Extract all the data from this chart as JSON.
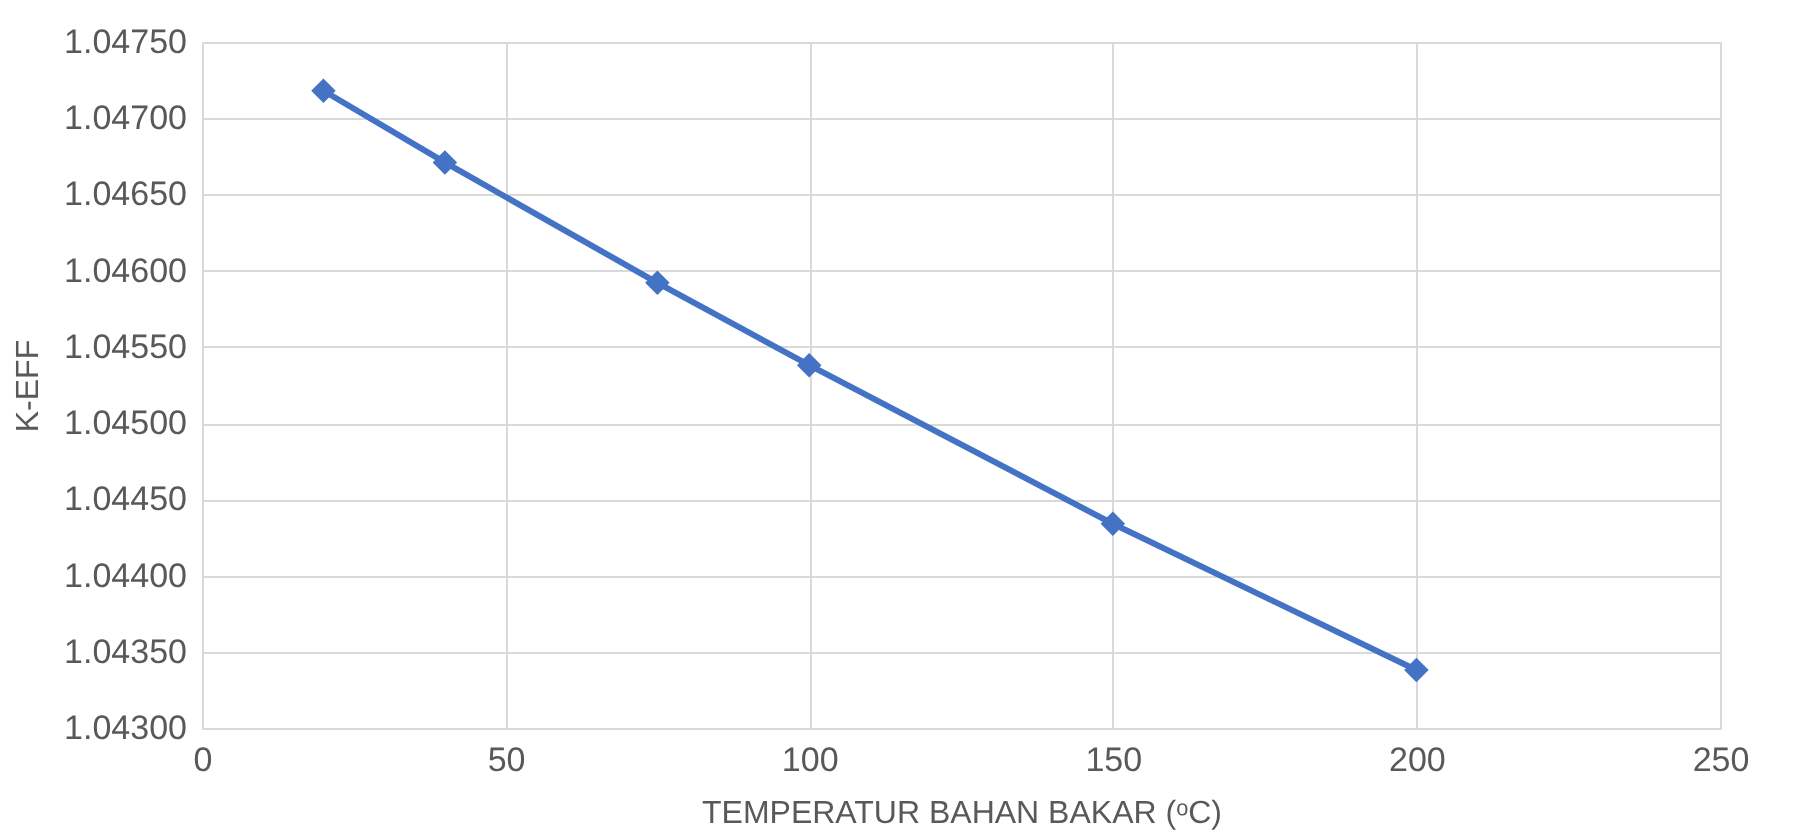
{
  "chart_data": {
    "type": "line",
    "xlabel": "TEMPERATUR BAHAN BAKAR (ᵒC)",
    "ylabel": "K-EFF",
    "x": [
      20,
      40,
      75,
      100,
      150,
      200
    ],
    "series": [
      {
        "color": "#4472c4",
        "values": [
          1.04718,
          1.04671,
          1.04592,
          1.04538,
          1.04434,
          1.04338
        ]
      }
    ],
    "xlim": [
      0,
      250
    ],
    "xticks": [
      0,
      50,
      100,
      150,
      200,
      250
    ],
    "ylim": [
      1.043,
      1.0475
    ],
    "yticks": [
      {
        "value": 1.043,
        "label": "1.04300"
      },
      {
        "value": 1.0435,
        "label": "1.04350"
      },
      {
        "value": 1.044,
        "label": "1.04400"
      },
      {
        "value": 1.0445,
        "label": "1.04450"
      },
      {
        "value": 1.045,
        "label": "1.04500"
      },
      {
        "value": 1.0455,
        "label": "1.04550"
      },
      {
        "value": 1.046,
        "label": "1.04600"
      },
      {
        "value": 1.0465,
        "label": "1.04650"
      },
      {
        "value": 1.047,
        "label": "1.04700"
      },
      {
        "value": 1.0475,
        "label": "1.04750"
      }
    ],
    "grid": true,
    "marker": "diamond",
    "line_style": "solid"
  }
}
